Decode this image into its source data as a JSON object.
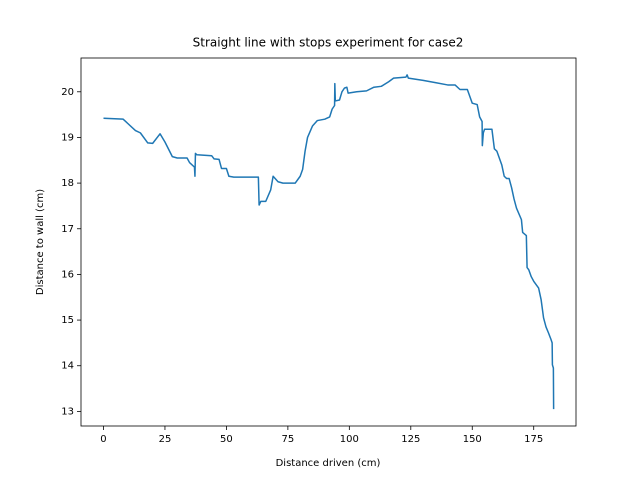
{
  "chart_data": {
    "type": "line",
    "title": "Straight line with stops experiment for case2",
    "x_label": "Distance driven (cm)",
    "y_label": "Distance to wall (cm)",
    "x": [
      0,
      8,
      10,
      13,
      15,
      18,
      20,
      23,
      25,
      28,
      30,
      34,
      35,
      37,
      37.2,
      37.4,
      38,
      44,
      45,
      47,
      48,
      50,
      51,
      53,
      63,
      63.3,
      64,
      66,
      68,
      69,
      71,
      73,
      78,
      80,
      81,
      82,
      83,
      85,
      87,
      90,
      92,
      93,
      94,
      94.1,
      94.3,
      96,
      97,
      98,
      99,
      99.5,
      103,
      107,
      110,
      113,
      116,
      118,
      123,
      123.5,
      124,
      130,
      135,
      140,
      143,
      145,
      148,
      150,
      152,
      153,
      154,
      154.1,
      154.5,
      155,
      158,
      159,
      160,
      162,
      163,
      164,
      165,
      166,
      167,
      168,
      170,
      170.5,
      172,
      172.3,
      173,
      174,
      175,
      177,
      178,
      179,
      180,
      181,
      182,
      182.5,
      182.6,
      183,
      183.1
    ],
    "series": [
      {
        "name": "case2",
        "color": "#1f77b4",
        "values": [
          19.42,
          19.4,
          19.3,
          19.15,
          19.1,
          18.88,
          18.87,
          19.08,
          18.9,
          18.58,
          18.55,
          18.55,
          18.45,
          18.35,
          18.15,
          18.65,
          18.62,
          18.6,
          18.53,
          18.52,
          18.32,
          18.32,
          18.15,
          18.13,
          18.13,
          17.52,
          17.6,
          17.6,
          17.85,
          18.15,
          18.03,
          18.0,
          18.0,
          18.15,
          18.3,
          18.7,
          19.0,
          19.25,
          19.37,
          19.4,
          19.45,
          19.62,
          19.7,
          20.18,
          19.8,
          19.82,
          20.0,
          20.08,
          20.1,
          19.97,
          20.0,
          20.02,
          20.1,
          20.12,
          20.22,
          20.3,
          20.32,
          20.37,
          20.3,
          20.25,
          20.2,
          20.15,
          20.15,
          20.05,
          20.05,
          19.75,
          19.72,
          19.45,
          19.35,
          18.82,
          19.1,
          19.18,
          19.18,
          18.75,
          18.7,
          18.4,
          18.15,
          18.1,
          18.1,
          17.9,
          17.65,
          17.45,
          17.2,
          16.92,
          16.85,
          16.15,
          16.1,
          15.95,
          15.85,
          15.7,
          15.45,
          15.05,
          14.85,
          14.72,
          14.58,
          14.5,
          14.02,
          13.95,
          13.05
        ]
      }
    ],
    "xlim": [
      -9.15,
      192.2
    ],
    "ylim": [
      12.68,
      20.74
    ],
    "xticks": [
      0,
      25,
      50,
      75,
      100,
      125,
      150,
      175
    ],
    "yticks": [
      13,
      14,
      15,
      16,
      17,
      18,
      19,
      20
    ],
    "grid": false
  }
}
